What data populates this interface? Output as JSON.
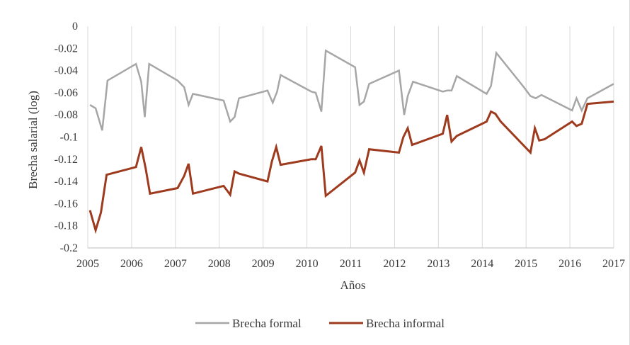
{
  "chart_data": {
    "type": "line",
    "title": "",
    "xlabel": "Años",
    "ylabel": "Brecha salarial (log)",
    "xlim": [
      2005,
      2017
    ],
    "ylim": [
      -0.2,
      0
    ],
    "x_ticks": [
      "2005",
      "2006",
      "2007",
      "2008",
      "2009",
      "2010",
      "2011",
      "2012",
      "2013",
      "2014",
      "2015",
      "2016",
      "2017"
    ],
    "y_ticks": [
      "0",
      "-0.02",
      "-0.04",
      "-0.06",
      "-0.08",
      "-0.1",
      "-0.12",
      "-0.14",
      "-0.16",
      "-0.18",
      "-0.2"
    ],
    "grid": "vertical",
    "legend_position": "bottom",
    "series": [
      {
        "name": "Brecha formal",
        "color": "#a6a6a6",
        "points": [
          [
            2005.05,
            -0.071
          ],
          [
            2005.18,
            -0.074
          ],
          [
            2005.33,
            -0.094
          ],
          [
            2005.45,
            -0.049
          ],
          [
            2006.1,
            -0.034
          ],
          [
            2006.22,
            -0.05
          ],
          [
            2006.3,
            -0.082
          ],
          [
            2006.4,
            -0.034
          ],
          [
            2007.05,
            -0.049
          ],
          [
            2007.2,
            -0.055
          ],
          [
            2007.3,
            -0.071
          ],
          [
            2007.4,
            -0.061
          ],
          [
            2008.1,
            -0.067
          ],
          [
            2008.25,
            -0.086
          ],
          [
            2008.35,
            -0.082
          ],
          [
            2008.45,
            -0.065
          ],
          [
            2009.1,
            -0.058
          ],
          [
            2009.22,
            -0.069
          ],
          [
            2009.32,
            -0.059
          ],
          [
            2009.4,
            -0.044
          ],
          [
            2010.1,
            -0.059
          ],
          [
            2010.2,
            -0.06
          ],
          [
            2010.33,
            -0.077
          ],
          [
            2010.43,
            -0.022
          ],
          [
            2011.1,
            -0.037
          ],
          [
            2011.2,
            -0.071
          ],
          [
            2011.3,
            -0.068
          ],
          [
            2011.42,
            -0.052
          ],
          [
            2012.1,
            -0.04
          ],
          [
            2012.22,
            -0.08
          ],
          [
            2012.3,
            -0.063
          ],
          [
            2012.42,
            -0.05
          ],
          [
            2013.1,
            -0.059
          ],
          [
            2013.2,
            -0.058
          ],
          [
            2013.3,
            -0.058
          ],
          [
            2013.42,
            -0.045
          ],
          [
            2014.1,
            -0.061
          ],
          [
            2014.2,
            -0.054
          ],
          [
            2014.32,
            -0.024
          ],
          [
            2014.95,
            -0.055
          ],
          [
            2015.1,
            -0.063
          ],
          [
            2015.22,
            -0.065
          ],
          [
            2015.35,
            -0.062
          ],
          [
            2016.05,
            -0.076
          ],
          [
            2016.15,
            -0.065
          ],
          [
            2016.27,
            -0.076
          ],
          [
            2016.4,
            -0.065
          ],
          [
            2017,
            -0.052
          ]
        ]
      },
      {
        "name": "Brecha informal",
        "color": "#9e3a1e",
        "points": [
          [
            2005.05,
            -0.166
          ],
          [
            2005.18,
            -0.184
          ],
          [
            2005.3,
            -0.168
          ],
          [
            2005.43,
            -0.134
          ],
          [
            2006.1,
            -0.127
          ],
          [
            2006.22,
            -0.109
          ],
          [
            2006.32,
            -0.128
          ],
          [
            2006.42,
            -0.151
          ],
          [
            2007.05,
            -0.146
          ],
          [
            2007.2,
            -0.135
          ],
          [
            2007.3,
            -0.124
          ],
          [
            2007.4,
            -0.151
          ],
          [
            2008.1,
            -0.144
          ],
          [
            2008.25,
            -0.152
          ],
          [
            2008.35,
            -0.131
          ],
          [
            2008.45,
            -0.133
          ],
          [
            2009.1,
            -0.14
          ],
          [
            2009.2,
            -0.122
          ],
          [
            2009.3,
            -0.109
          ],
          [
            2009.4,
            -0.125
          ],
          [
            2010.1,
            -0.12
          ],
          [
            2010.2,
            -0.12
          ],
          [
            2010.33,
            -0.108
          ],
          [
            2010.43,
            -0.153
          ],
          [
            2011.1,
            -0.132
          ],
          [
            2011.2,
            -0.121
          ],
          [
            2011.3,
            -0.132
          ],
          [
            2011.42,
            -0.111
          ],
          [
            2012.1,
            -0.114
          ],
          [
            2012.2,
            -0.1
          ],
          [
            2012.3,
            -0.092
          ],
          [
            2012.4,
            -0.107
          ],
          [
            2013.1,
            -0.097
          ],
          [
            2013.2,
            -0.08
          ],
          [
            2013.3,
            -0.104
          ],
          [
            2013.42,
            -0.099
          ],
          [
            2014.1,
            -0.086
          ],
          [
            2014.2,
            -0.077
          ],
          [
            2014.3,
            -0.079
          ],
          [
            2014.42,
            -0.086
          ],
          [
            2015.1,
            -0.114
          ],
          [
            2015.2,
            -0.092
          ],
          [
            2015.3,
            -0.103
          ],
          [
            2015.42,
            -0.102
          ],
          [
            2016.05,
            -0.086
          ],
          [
            2016.15,
            -0.09
          ],
          [
            2016.27,
            -0.088
          ],
          [
            2016.4,
            -0.07
          ],
          [
            2017,
            -0.068
          ]
        ]
      }
    ]
  }
}
